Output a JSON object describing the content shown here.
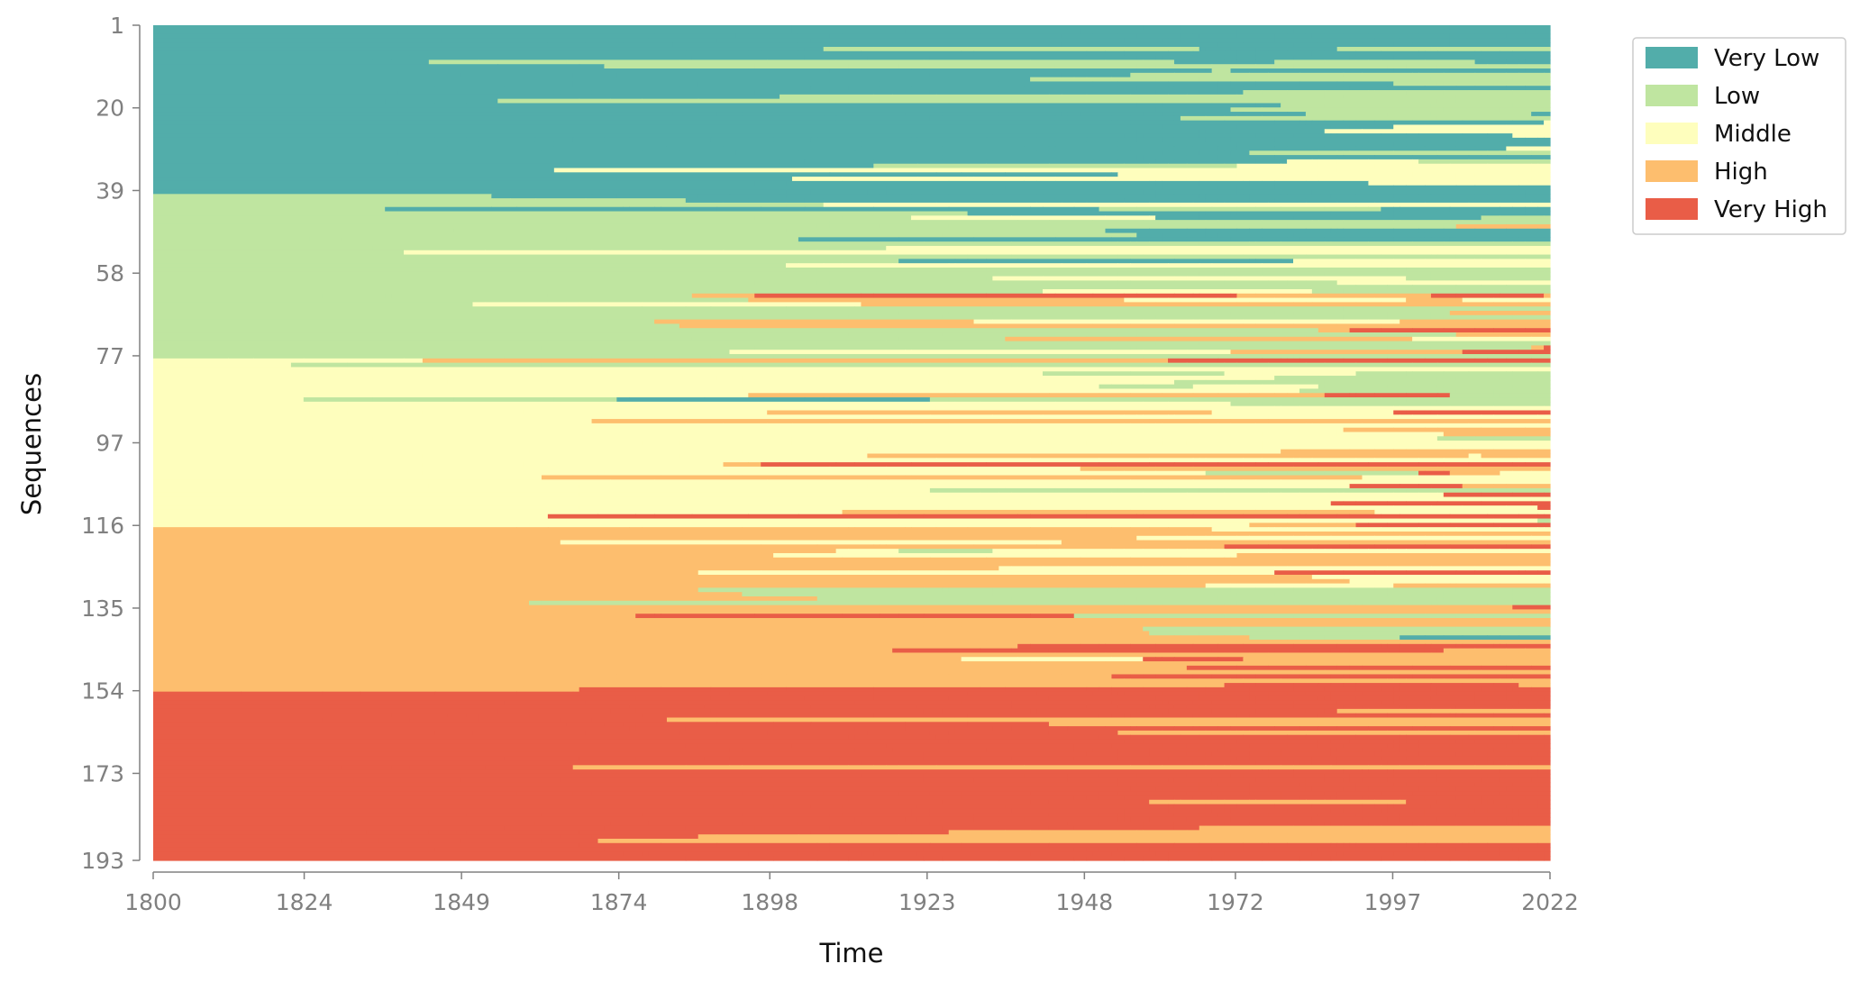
{
  "chart_data": {
    "type": "heatmap",
    "subtype": "sequence-index-plot",
    "title": "",
    "xlabel": "Time",
    "ylabel": "Sequences",
    "x_range": [
      1800,
      2022
    ],
    "y_range": [
      1,
      193
    ],
    "x_ticks": [
      "1800",
      "1824",
      "1849",
      "1874",
      "1898",
      "1923",
      "1948",
      "1972",
      "1997",
      "2022"
    ],
    "y_ticks": [
      "1",
      "20",
      "39",
      "58",
      "77",
      "97",
      "116",
      "135",
      "154",
      "173",
      "193"
    ],
    "grid": false,
    "legend_position": "top-right outside",
    "states": [
      {
        "name": "Very Low",
        "color": "#52ADAA"
      },
      {
        "name": "Low",
        "color": "#BFE5A0"
      },
      {
        "name": "Middle",
        "color": "#FEFEBD"
      },
      {
        "name": "High",
        "color": "#FDBE6E"
      },
      {
        "name": "Very High",
        "color": "#E95D47"
      }
    ],
    "n_sequences": 193,
    "n_timepoints": 223,
    "initial_state_groups": [
      {
        "state": "Very Low",
        "from_sequence": 1,
        "to_sequence": 39
      },
      {
        "state": "Low",
        "from_sequence": 40,
        "to_sequence": 77
      },
      {
        "state": "Middle",
        "from_sequence": 78,
        "to_sequence": 116
      },
      {
        "state": "High",
        "from_sequence": 117,
        "to_sequence": 154
      },
      {
        "state": "Very High",
        "from_sequence": 155,
        "to_sequence": 193
      }
    ]
  }
}
